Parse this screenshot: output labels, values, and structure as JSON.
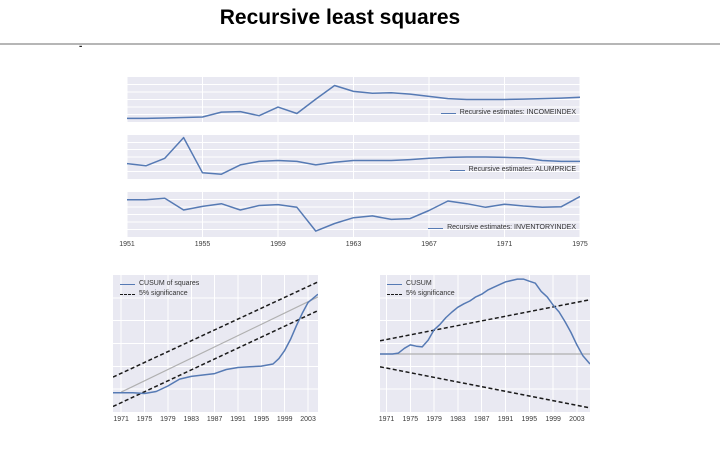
{
  "page": {
    "title": "Recursive least squares",
    "stray_mark": "-"
  },
  "colors": {
    "line_blue": "#567ab4",
    "significance_black": "#1a1a1a",
    "reference_grey": "#b0b0b0",
    "plot_bg": "#e9e9f2",
    "grid_white": "#ffffff",
    "tick_text": "#3a3a3a",
    "divider_grey": "#b6b6b6"
  },
  "chart_data": [
    {
      "id": "income",
      "type": "line",
      "title": "",
      "xlabel": "",
      "ylabel": "",
      "y_note": "no y-axis tick labels in source; values normalized 0-1 of plot height",
      "xlim": [
        1951,
        1975
      ],
      "xticks": [
        1951,
        1955,
        1959,
        1963,
        1967,
        1971,
        1975
      ],
      "show_xtick_labels": false,
      "hgrid": 5,
      "legend_pos": "lower right",
      "legend": [
        {
          "label": "Recursive estimates: INCOMEINDEX",
          "style": "solid"
        }
      ],
      "series": [
        {
          "name": "recursive-estimate-incomeindex",
          "style": "solid",
          "color": "blue",
          "width": 1.5,
          "x": [
            1951,
            1952,
            1953,
            1954,
            1955,
            1956,
            1957,
            1958,
            1959,
            1960,
            1961,
            1962,
            1963,
            1964,
            1965,
            1966,
            1967,
            1968,
            1969,
            1970,
            1971,
            1972,
            1973,
            1974,
            1975
          ],
          "y": [
            0.08,
            0.08,
            0.09,
            0.1,
            0.11,
            0.22,
            0.23,
            0.14,
            0.33,
            0.19,
            0.51,
            0.81,
            0.68,
            0.64,
            0.65,
            0.62,
            0.57,
            0.52,
            0.5,
            0.5,
            0.5,
            0.51,
            0.52,
            0.53,
            0.55
          ]
        }
      ]
    },
    {
      "id": "alum",
      "type": "line",
      "title": "",
      "xlabel": "",
      "ylabel": "",
      "y_note": "no y-axis tick labels in source; values normalized 0-1 of plot height",
      "xlim": [
        1951,
        1975
      ],
      "xticks": [
        1951,
        1955,
        1959,
        1963,
        1967,
        1971,
        1975
      ],
      "show_xtick_labels": false,
      "hgrid": 5,
      "legend_pos": "lower right",
      "legend": [
        {
          "label": "Recursive estimates: ALUMPRICE",
          "style": "solid"
        }
      ],
      "series": [
        {
          "name": "recursive-estimate-alumprice",
          "style": "solid",
          "color": "blue",
          "width": 1.5,
          "x": [
            1951,
            1952,
            1953,
            1954,
            1955,
            1956,
            1957,
            1958,
            1959,
            1960,
            1961,
            1962,
            1963,
            1964,
            1965,
            1966,
            1967,
            1968,
            1969,
            1970,
            1971,
            1972,
            1973,
            1974,
            1975
          ],
          "y": [
            0.35,
            0.3,
            0.47,
            0.94,
            0.14,
            0.11,
            0.32,
            0.4,
            0.42,
            0.4,
            0.32,
            0.38,
            0.42,
            0.42,
            0.42,
            0.44,
            0.47,
            0.49,
            0.5,
            0.5,
            0.49,
            0.48,
            0.42,
            0.4,
            0.4
          ]
        }
      ]
    },
    {
      "id": "inventory",
      "type": "line",
      "title": "",
      "xlabel": "",
      "ylabel": "",
      "y_note": "no y-axis tick labels in source; values normalized 0-1 of plot height",
      "xlim": [
        1951,
        1975
      ],
      "xticks": [
        1951,
        1955,
        1959,
        1963,
        1967,
        1971,
        1975
      ],
      "show_xtick_labels": true,
      "hgrid": 5,
      "legend_pos": "lower right",
      "legend": [
        {
          "label": "Recursive estimates: INVENTORYINDEX",
          "style": "solid"
        }
      ],
      "series": [
        {
          "name": "recursive-estimate-inventoryindex",
          "style": "solid",
          "color": "blue",
          "width": 1.5,
          "x": [
            1951,
            1952,
            1953,
            1954,
            1955,
            1956,
            1957,
            1958,
            1959,
            1960,
            1961,
            1962,
            1963,
            1964,
            1965,
            1966,
            1967,
            1968,
            1969,
            1970,
            1971,
            1972,
            1973,
            1974,
            1975
          ],
          "y": [
            0.83,
            0.83,
            0.86,
            0.6,
            0.68,
            0.74,
            0.6,
            0.7,
            0.72,
            0.66,
            0.13,
            0.3,
            0.43,
            0.47,
            0.39,
            0.41,
            0.59,
            0.8,
            0.74,
            0.66,
            0.73,
            0.69,
            0.66,
            0.67,
            0.9
          ]
        }
      ]
    },
    {
      "id": "cusumsq",
      "type": "line",
      "title": "",
      "xlabel": "",
      "ylabel": "",
      "y_note": "no y-axis tick labels in source; values normalized 0-1 of plot height",
      "xlim": [
        1969.6,
        2004.7
      ],
      "xticks": [
        1971,
        1975,
        1979,
        1983,
        1987,
        1991,
        1995,
        1999,
        2003
      ],
      "show_xtick_labels": true,
      "hgrid": 5,
      "legend_pos": "upper left",
      "legend": [
        {
          "label": "CUSUM of squares",
          "style": "solid"
        },
        {
          "label": "5% significance",
          "style": "dashed"
        }
      ],
      "series": [
        {
          "name": "reference-line",
          "style": "solid",
          "color": "grey",
          "width": 1.2,
          "x": [
            1971,
            2004.7
          ],
          "y": [
            0.145,
            0.84
          ]
        },
        {
          "name": "significance-upper",
          "style": "dashed",
          "color": "black",
          "width": 1.5,
          "x": [
            1969.6,
            2004.7
          ],
          "y": [
            0.255,
            0.95
          ]
        },
        {
          "name": "significance-lower",
          "style": "dashed",
          "color": "black",
          "width": 1.5,
          "x": [
            1969.6,
            2004.7
          ],
          "y": [
            0.04,
            0.74
          ]
        },
        {
          "name": "cusum-of-squares",
          "style": "solid",
          "color": "blue",
          "width": 1.5,
          "x": [
            1969.6,
            1971,
            1973,
            1975,
            1977,
            1979,
            1981,
            1983,
            1985,
            1987,
            1989,
            1991,
            1993,
            1995,
            1997,
            1998,
            1999,
            2000,
            2001,
            2002,
            2003,
            2004.7
          ],
          "y": [
            0.14,
            0.14,
            0.14,
            0.135,
            0.15,
            0.19,
            0.24,
            0.26,
            0.27,
            0.28,
            0.31,
            0.325,
            0.33,
            0.335,
            0.35,
            0.39,
            0.45,
            0.53,
            0.63,
            0.72,
            0.8,
            0.86
          ]
        }
      ]
    },
    {
      "id": "cusum",
      "type": "line",
      "title": "",
      "xlabel": "",
      "ylabel": "",
      "y_note": "no y-axis tick labels in source; values normalized 0-1 of plot height; 0.423 = zero line",
      "xlim": [
        1969.9,
        2005.2
      ],
      "xticks": [
        1971,
        1975,
        1979,
        1983,
        1987,
        1991,
        1995,
        1999,
        2003
      ],
      "show_xtick_labels": true,
      "hgrid": 5,
      "legend_pos": "upper left",
      "legend": [
        {
          "label": "CUSUM",
          "style": "solid"
        },
        {
          "label": "5% significance",
          "style": "dashed"
        }
      ],
      "series": [
        {
          "name": "zero-line",
          "style": "solid",
          "color": "grey",
          "width": 1.2,
          "x": [
            1969.9,
            2005.2
          ],
          "y": [
            0.423,
            0.423
          ]
        },
        {
          "name": "significance-upper",
          "style": "dashed",
          "color": "black",
          "width": 1.5,
          "x": [
            1969.9,
            2005.2
          ],
          "y": [
            0.52,
            0.82
          ]
        },
        {
          "name": "significance-lower",
          "style": "dashed",
          "color": "black",
          "width": 1.5,
          "x": [
            1969.9,
            2005.2
          ],
          "y": [
            0.33,
            0.03
          ]
        },
        {
          "name": "cusum-statistic",
          "style": "solid",
          "color": "blue",
          "width": 1.5,
          "x": [
            1969.9,
            1971,
            1972,
            1973,
            1974,
            1975,
            1976,
            1977,
            1978,
            1979,
            1980,
            1981,
            1982,
            1983,
            1984,
            1985,
            1986,
            1987,
            1988,
            1989,
            1990,
            1991,
            1992,
            1993,
            1994,
            1995,
            1996,
            1997,
            1998,
            1999,
            2000,
            2001,
            2002,
            2003,
            2004,
            2005.2
          ],
          "y": [
            0.423,
            0.423,
            0.423,
            0.43,
            0.465,
            0.49,
            0.48,
            0.475,
            0.525,
            0.6,
            0.64,
            0.69,
            0.73,
            0.765,
            0.79,
            0.81,
            0.84,
            0.86,
            0.89,
            0.91,
            0.93,
            0.95,
            0.96,
            0.97,
            0.97,
            0.955,
            0.94,
            0.88,
            0.84,
            0.78,
            0.73,
            0.66,
            0.58,
            0.49,
            0.41,
            0.35
          ]
        }
      ]
    }
  ]
}
